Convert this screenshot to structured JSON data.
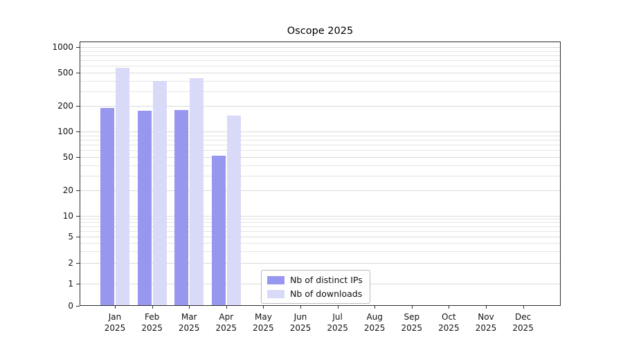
{
  "chart_data": {
    "type": "bar",
    "title": "Oscope 2025",
    "categories": [
      "Jan",
      "Feb",
      "Mar",
      "Apr",
      "May",
      "Jun",
      "Jul",
      "Aug",
      "Sep",
      "Oct",
      "Nov",
      "Dec"
    ],
    "category_sublabel": "2025",
    "series": [
      {
        "name": "Nb of distinct IPs",
        "color": "#9797ef",
        "values": [
          190,
          175,
          180,
          52,
          null,
          null,
          null,
          null,
          null,
          null,
          null,
          null
        ]
      },
      {
        "name": "Nb of downloads",
        "color": "#d9d9f8",
        "values": [
          570,
          400,
          430,
          155,
          null,
          null,
          null,
          null,
          null,
          null,
          null,
          null
        ]
      }
    ],
    "y_axis": {
      "scale": "symlog",
      "ticks": [
        0,
        1,
        2,
        5,
        10,
        20,
        50,
        100,
        200,
        500,
        1000
      ],
      "range": [
        0,
        1000
      ]
    },
    "x_axis": {
      "label": ""
    },
    "grid": {
      "horizontal": true,
      "minor": true,
      "color": "#e4e4e4"
    },
    "legend": {
      "position": "lower-center"
    }
  }
}
